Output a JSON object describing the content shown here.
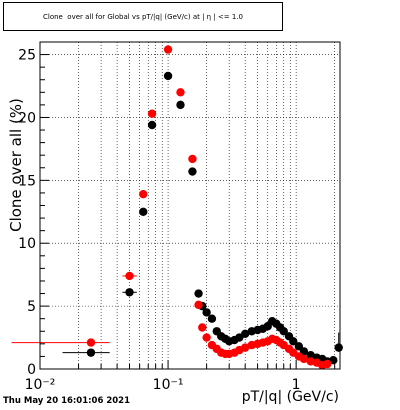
{
  "chart_data": {
    "type": "scatter",
    "title": "Clone  over all for Global vs pT/|q| (GeV/c) at | η | <= 1.0",
    "xlabel": "pT/|q| (GeV/c)",
    "ylabel": "Clone  over all (%)",
    "x_scale": "log",
    "xlim": [
      0.01,
      2.2
    ],
    "ylim": [
      0,
      26
    ],
    "x_tick_labels": [
      "10⁻²",
      "10⁻¹",
      "1"
    ],
    "y_tick_labels": [
      "0",
      "5",
      "10",
      "15",
      "20",
      "25"
    ],
    "grid": true,
    "series": [
      {
        "color": "#000000",
        "points": [
          [
            0.025,
            1.3,
            0.015,
            0.035,
            0,
            0
          ],
          [
            0.05,
            6.1,
            0.044,
            0.057,
            0,
            0
          ],
          [
            0.064,
            12.5,
            0,
            0,
            0,
            0
          ],
          [
            0.075,
            19.4,
            0,
            0,
            0,
            0
          ],
          [
            0.1,
            23.3,
            0,
            0,
            0,
            0
          ],
          [
            0.125,
            21.0,
            0,
            0,
            0,
            0
          ],
          [
            0.155,
            15.7,
            0,
            0,
            0,
            0
          ],
          [
            0.173,
            6.0,
            0,
            0,
            0,
            0
          ],
          [
            0.185,
            5.0,
            0,
            0,
            0,
            0
          ],
          [
            0.2,
            4.5,
            0,
            0,
            0,
            0
          ],
          [
            0.22,
            4.0,
            0,
            0,
            0,
            0
          ],
          [
            0.24,
            3.0,
            0,
            0,
            0,
            0
          ],
          [
            0.26,
            2.6,
            0,
            0,
            0,
            0
          ],
          [
            0.28,
            2.4,
            0,
            0,
            0,
            0
          ],
          [
            0.3,
            2.2,
            0,
            0,
            0,
            0
          ],
          [
            0.33,
            2.3,
            0,
            0,
            0,
            0
          ],
          [
            0.36,
            2.5,
            0,
            0,
            0,
            0
          ],
          [
            0.4,
            2.8,
            0,
            0,
            0,
            0
          ],
          [
            0.45,
            3.0,
            0,
            0,
            0,
            0
          ],
          [
            0.5,
            3.1,
            0,
            0,
            0,
            0
          ],
          [
            0.55,
            3.2,
            0,
            0,
            0,
            0
          ],
          [
            0.6,
            3.4,
            0,
            0,
            0,
            0
          ],
          [
            0.65,
            3.8,
            0,
            0,
            0,
            0
          ],
          [
            0.7,
            3.6,
            0,
            0,
            0,
            0
          ],
          [
            0.75,
            3.3,
            0,
            0,
            0,
            0
          ],
          [
            0.8,
            3.0,
            0,
            0,
            0,
            0
          ],
          [
            0.88,
            2.6,
            0,
            0,
            0,
            0
          ],
          [
            0.95,
            2.2,
            0,
            0,
            0,
            0
          ],
          [
            1.05,
            1.8,
            0,
            0,
            0,
            0
          ],
          [
            1.15,
            1.4,
            0,
            0,
            0,
            0
          ],
          [
            1.3,
            1.1,
            0,
            0,
            0,
            0
          ],
          [
            1.45,
            0.9,
            0,
            0,
            0,
            0
          ],
          [
            1.6,
            0.8,
            0,
            0,
            0,
            0
          ],
          [
            1.75,
            0.6,
            0,
            0,
            0,
            0
          ],
          [
            1.95,
            0.7,
            0,
            0,
            0,
            0
          ],
          [
            2.15,
            1.7,
            0,
            0,
            0,
            1.2
          ]
        ]
      },
      {
        "color": "#ff0000",
        "points": [
          [
            0.025,
            2.1,
            0.006,
            0.035,
            0,
            0
          ],
          [
            0.05,
            7.4,
            0.044,
            0.057,
            0,
            0
          ],
          [
            0.064,
            13.9,
            0,
            0,
            0,
            0
          ],
          [
            0.075,
            20.3,
            0,
            0,
            0,
            0
          ],
          [
            0.1,
            25.4,
            0,
            0,
            0,
            0
          ],
          [
            0.125,
            22.0,
            0,
            0,
            0,
            0
          ],
          [
            0.155,
            16.7,
            0,
            0,
            0,
            0
          ],
          [
            0.173,
            5.1,
            0,
            0,
            0,
            0
          ],
          [
            0.185,
            3.3,
            0,
            0,
            0,
            0
          ],
          [
            0.2,
            2.5,
            0,
            0,
            0,
            0
          ],
          [
            0.22,
            1.9,
            0,
            0,
            0,
            0
          ],
          [
            0.24,
            1.6,
            0,
            0,
            0,
            0
          ],
          [
            0.26,
            1.3,
            0,
            0,
            0,
            0
          ],
          [
            0.28,
            1.2,
            0,
            0,
            0,
            0
          ],
          [
            0.3,
            1.2,
            0,
            0,
            0,
            0
          ],
          [
            0.33,
            1.3,
            0,
            0,
            0,
            0
          ],
          [
            0.36,
            1.5,
            0,
            0,
            0,
            0
          ],
          [
            0.4,
            1.7,
            0,
            0,
            0,
            0
          ],
          [
            0.45,
            1.9,
            0,
            0,
            0,
            0
          ],
          [
            0.5,
            2.0,
            0,
            0,
            0,
            0
          ],
          [
            0.55,
            2.1,
            0,
            0,
            0,
            0
          ],
          [
            0.6,
            2.2,
            0,
            0,
            0,
            0
          ],
          [
            0.65,
            2.4,
            0,
            0,
            0,
            0
          ],
          [
            0.7,
            2.3,
            0,
            0,
            0,
            0
          ],
          [
            0.75,
            2.1,
            0,
            0,
            0,
            0
          ],
          [
            0.8,
            1.9,
            0,
            0,
            0,
            0
          ],
          [
            0.88,
            1.6,
            0,
            0,
            0,
            0
          ],
          [
            0.95,
            1.3,
            0,
            0,
            0,
            0
          ],
          [
            1.05,
            1.0,
            0,
            0,
            0,
            0
          ],
          [
            1.15,
            0.8,
            0,
            0,
            0,
            0
          ],
          [
            1.3,
            0.6,
            0,
            0,
            0,
            0
          ],
          [
            1.45,
            0.5,
            0,
            0,
            0,
            0
          ],
          [
            1.6,
            0.3,
            0,
            0,
            0,
            0
          ],
          [
            1.75,
            0.4,
            0,
            0,
            0,
            0
          ]
        ]
      }
    ]
  },
  "footer": "Thu May 20 16:01:06 2021"
}
